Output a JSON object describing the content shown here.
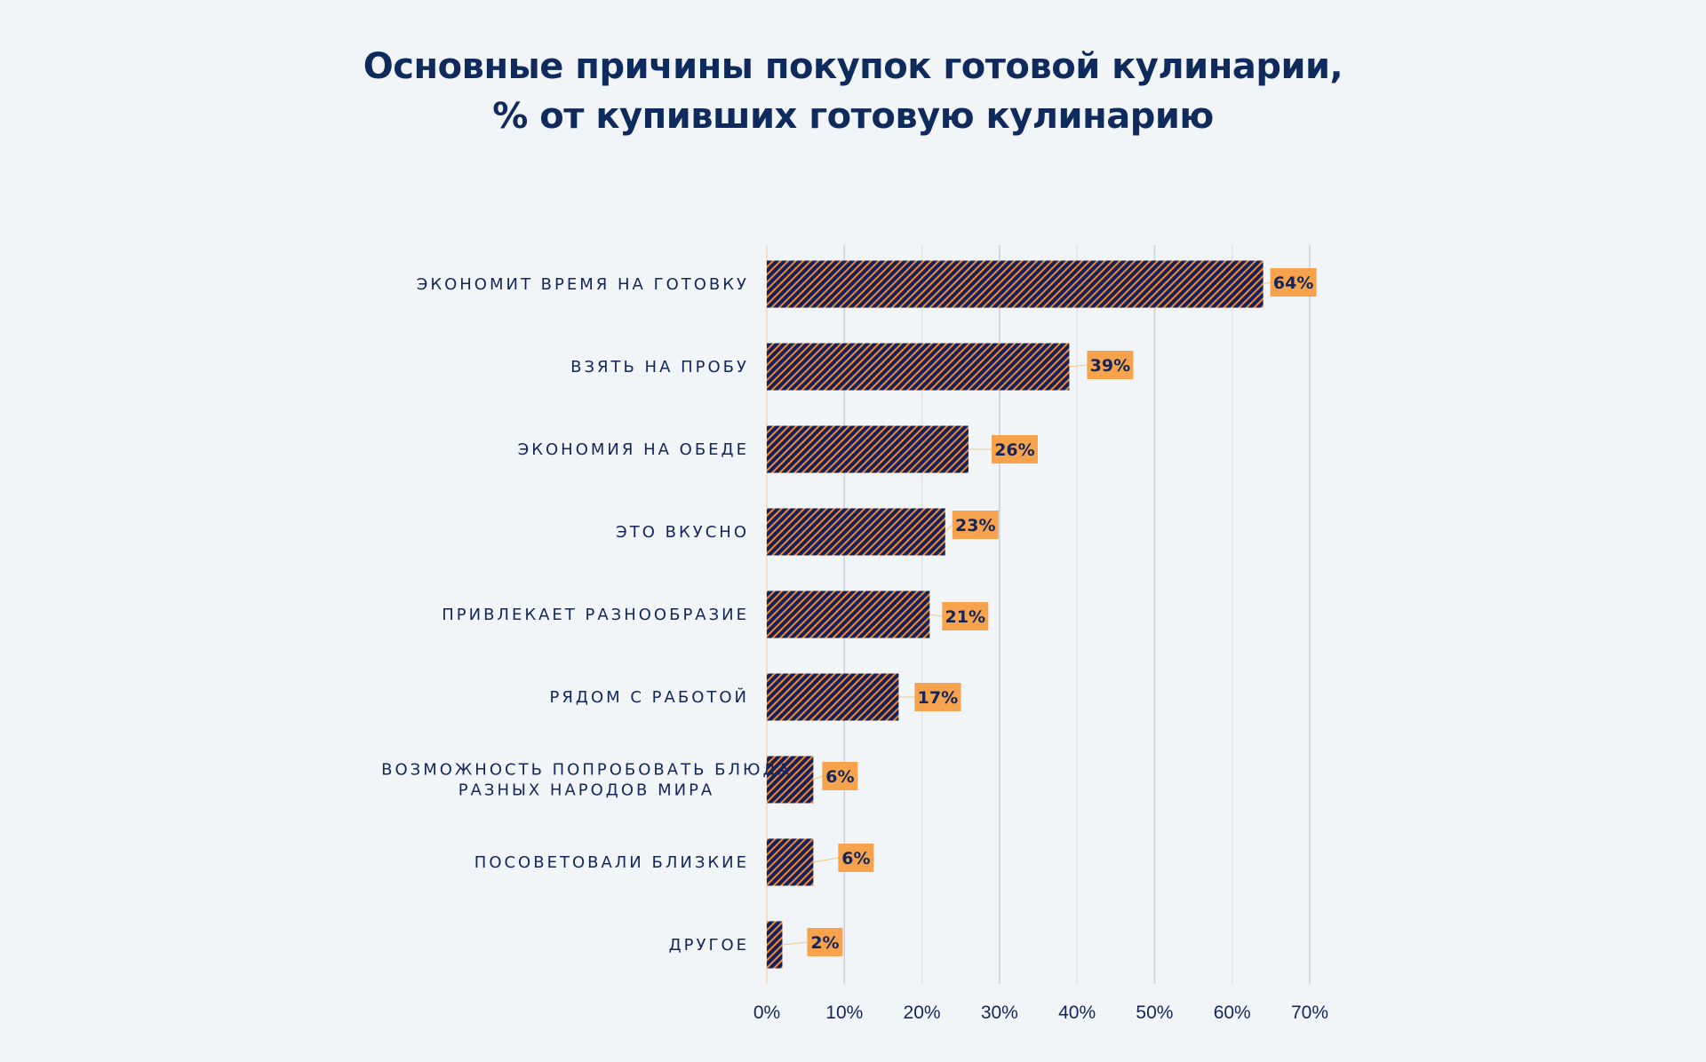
{
  "chart_data": {
    "type": "bar",
    "orientation": "horizontal",
    "title": [
      "Основные причины покупок готовой кулинарии,",
      "% от купивших готовую кулинарию"
    ],
    "categories": [
      [
        "ЭКОНОМИТ ВРЕМЯ НА ГОТОВКУ"
      ],
      [
        "ВЗЯТЬ НА ПРОБУ"
      ],
      [
        "ЭКОНОМИЯ НА ОБЕДЕ"
      ],
      [
        "ЭТО ВКУСНО"
      ],
      [
        "ПРИВЛЕКАЕТ РАЗНООБРАЗИЕ"
      ],
      [
        "РЯДОМ С РАБОТОЙ"
      ],
      [
        "ВОЗМОЖНОСТЬ ПОПРОБОВАТЬ БЛЮДА",
        "РАЗНЫХ НАРОДОВ МИРА"
      ],
      [
        "ПОСОВЕТОВАЛИ БЛИЗКИЕ"
      ],
      [
        "ДРУГОЕ"
      ]
    ],
    "values": [
      64,
      39,
      26,
      23,
      21,
      17,
      6,
      6,
      2
    ],
    "value_labels": [
      "64%",
      "39%",
      "26%",
      "23%",
      "21%",
      "17%",
      "6%",
      "6%",
      "2%"
    ],
    "xlim": [
      0,
      70
    ],
    "xticks": [
      0,
      10,
      20,
      30,
      40,
      50,
      60,
      70
    ],
    "xtick_labels": [
      "0%",
      "10%",
      "20%",
      "30%",
      "40%",
      "50%",
      "60%",
      "70%"
    ],
    "xlabel": "",
    "ylabel": "",
    "grid": true,
    "colors": {
      "bar": "#14215e",
      "hatch": "#f08a2c",
      "label_box": "#f7a24c",
      "text": "#12265c",
      "grid": "#d5dae3"
    }
  }
}
